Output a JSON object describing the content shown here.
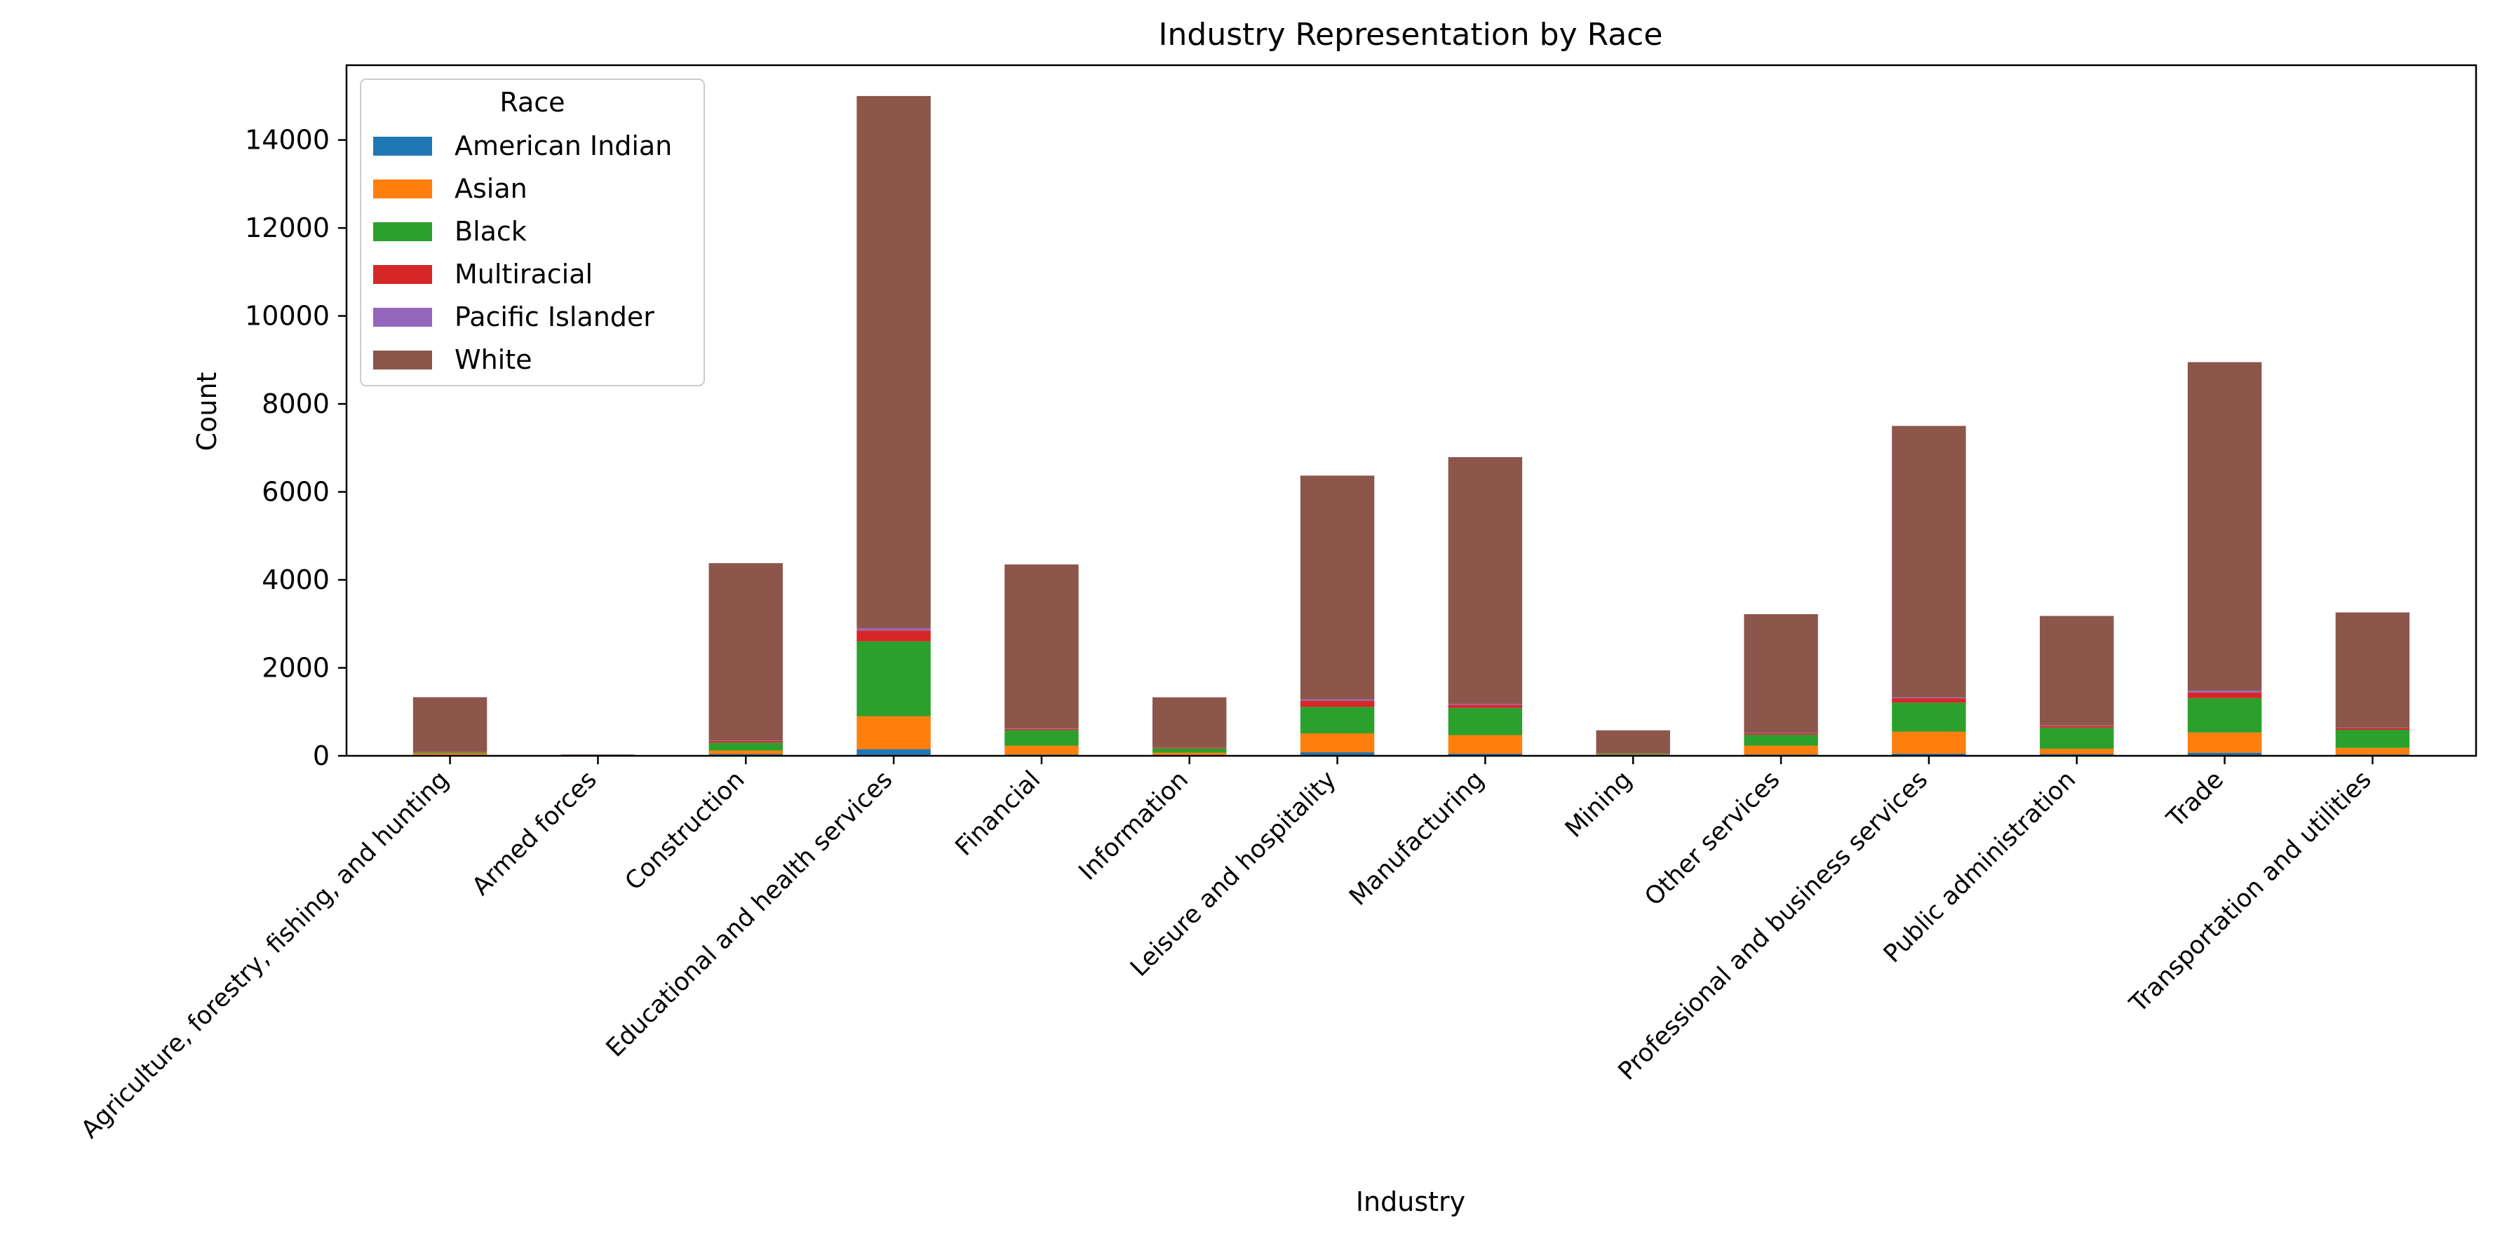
{
  "chart_data": {
    "type": "bar",
    "stacked": true,
    "title": "Industry Representation by Race",
    "xlabel": "Industry",
    "ylabel": "Count",
    "ylim": [
      0,
      15700
    ],
    "yticks": [
      0,
      2000,
      4000,
      6000,
      8000,
      10000,
      12000,
      14000
    ],
    "grid": false,
    "legend": {
      "title": "Race",
      "placement": "top-left"
    },
    "categories": [
      "Agriculture, forestry, fishing, and hunting",
      "Armed forces",
      "Construction",
      "Educational and health services",
      "Financial",
      "Information",
      "Leisure and hospitality",
      "Manufacturing",
      "Mining",
      "Other services",
      "Professional and business services",
      "Public administration",
      "Trade",
      "Transportation and utilities"
    ],
    "series": [
      {
        "name": "American Indian",
        "color": "#1f77b4",
        "values": [
          15,
          0,
          40,
          150,
          30,
          10,
          80,
          50,
          10,
          30,
          50,
          40,
          70,
          30
        ]
      },
      {
        "name": "Asian",
        "color": "#ff7f0e",
        "values": [
          40,
          2,
          80,
          750,
          200,
          60,
          430,
          420,
          20,
          200,
          500,
          120,
          460,
          150
        ]
      },
      {
        "name": "Black",
        "color": "#2ca02c",
        "values": [
          20,
          3,
          180,
          1700,
          350,
          100,
          600,
          620,
          20,
          250,
          660,
          480,
          780,
          410
        ]
      },
      {
        "name": "Multiracial",
        "color": "#d62728",
        "values": [
          5,
          0,
          40,
          250,
          30,
          20,
          140,
          70,
          5,
          30,
          100,
          40,
          130,
          40
        ]
      },
      {
        "name": "Pacific Islander",
        "color": "#9467bd",
        "values": [
          2,
          0,
          10,
          50,
          10,
          5,
          30,
          20,
          2,
          10,
          20,
          10,
          40,
          10
        ]
      },
      {
        "name": "White",
        "color": "#8c564b",
        "values": [
          1250,
          25,
          4030,
          12100,
          3730,
          1135,
          5090,
          5610,
          523,
          2700,
          6170,
          2490,
          7470,
          2620
        ]
      }
    ]
  }
}
